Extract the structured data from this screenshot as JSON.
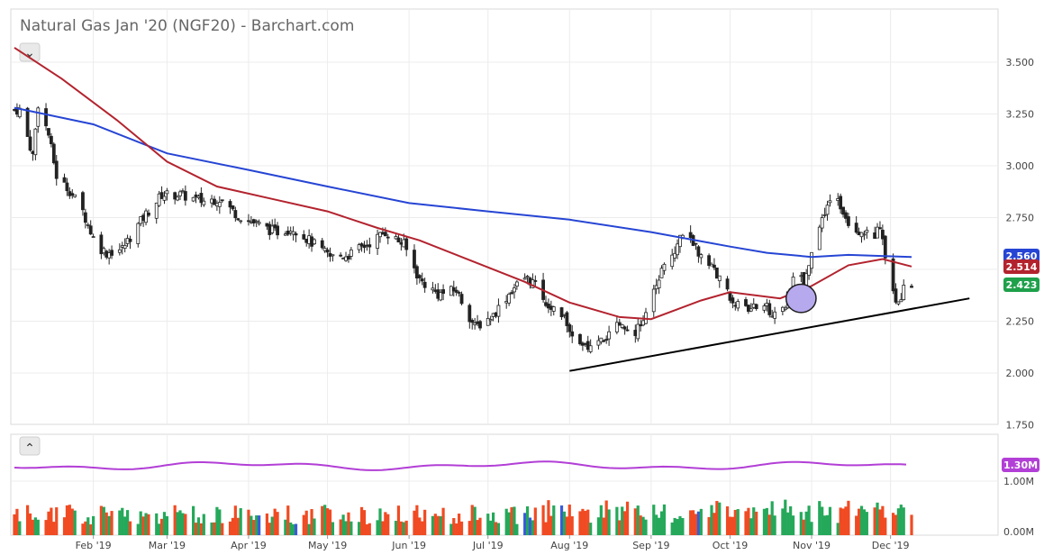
{
  "chart_data": [
    {
      "type": "candlestick",
      "title": "Natural Gas Jan '20 (NGF20) - Barchart.com",
      "ylim": [
        1.75,
        3.6
      ],
      "y_ticks": [
        "3.500",
        "3.250",
        "3.000",
        "2.750",
        "2.500",
        "2.250",
        "2.000",
        "1.750"
      ],
      "x_ticks": [
        "Feb '19",
        "Mar '19",
        "Apr '19",
        "May '19",
        "Jun '19",
        "Jul '19",
        "Aug '19",
        "Sep '19",
        "Oct '19",
        "Nov '19",
        "Dec '19"
      ],
      "price_path": [
        [
          "2019-01-04",
          3.27
        ],
        [
          "2019-01-09",
          3.05
        ],
        [
          "2019-01-11",
          3.3
        ],
        [
          "2019-01-15",
          3.15
        ],
        [
          "2019-01-18",
          2.95
        ],
        [
          "2019-01-23",
          2.88
        ],
        [
          "2019-01-28",
          2.78
        ],
        [
          "2019-02-02",
          2.62
        ],
        [
          "2019-02-06",
          2.58
        ],
        [
          "2019-02-12",
          2.6
        ],
        [
          "2019-02-20",
          2.75
        ],
        [
          "2019-02-27",
          2.86
        ],
        [
          "2019-03-06",
          2.86
        ],
        [
          "2019-03-14",
          2.83
        ],
        [
          "2019-03-21",
          2.84
        ],
        [
          "2019-03-28",
          2.76
        ],
        [
          "2019-04-04",
          2.72
        ],
        [
          "2019-04-11",
          2.68
        ],
        [
          "2019-04-18",
          2.7
        ],
        [
          "2019-04-26",
          2.62
        ],
        [
          "2019-05-02",
          2.56
        ],
        [
          "2019-05-09",
          2.57
        ],
        [
          "2019-05-16",
          2.62
        ],
        [
          "2019-05-23",
          2.68
        ],
        [
          "2019-05-30",
          2.62
        ],
        [
          "2019-06-05",
          2.45
        ],
        [
          "2019-06-12",
          2.38
        ],
        [
          "2019-06-19",
          2.4
        ],
        [
          "2019-06-26",
          2.22
        ],
        [
          "2019-07-03",
          2.28
        ],
        [
          "2019-07-10",
          2.4
        ],
        [
          "2019-07-15",
          2.46
        ],
        [
          "2019-07-18",
          2.44
        ],
        [
          "2019-07-24",
          2.33
        ],
        [
          "2019-07-31",
          2.25
        ],
        [
          "2019-08-05",
          2.12
        ],
        [
          "2019-08-12",
          2.14
        ],
        [
          "2019-08-19",
          2.22
        ],
        [
          "2019-08-26",
          2.2
        ],
        [
          "2019-08-31",
          2.3
        ],
        [
          "2019-09-05",
          2.5
        ],
        [
          "2019-09-10",
          2.6
        ],
        [
          "2019-09-13",
          2.68
        ],
        [
          "2019-09-18",
          2.6
        ],
        [
          "2019-09-25",
          2.5
        ],
        [
          "2019-10-01",
          2.36
        ],
        [
          "2019-10-07",
          2.3
        ],
        [
          "2019-10-14",
          2.33
        ],
        [
          "2019-10-18",
          2.27
        ],
        [
          "2019-10-22",
          2.33
        ],
        [
          "2019-10-26",
          2.48
        ],
        [
          "2019-10-29",
          2.44
        ],
        [
          "2019-11-02",
          2.6
        ],
        [
          "2019-11-06",
          2.78
        ],
        [
          "2019-11-10",
          2.86
        ],
        [
          "2019-11-15",
          2.73
        ],
        [
          "2019-11-20",
          2.68
        ],
        [
          "2019-11-25",
          2.67
        ],
        [
          "2019-11-27",
          2.7
        ],
        [
          "2019-11-29",
          2.55
        ],
        [
          "2019-12-03",
          2.32
        ],
        [
          "2019-12-06",
          2.4
        ],
        [
          "2019-12-09",
          2.423
        ]
      ],
      "series": [
        {
          "name": "",
          "type": "moving-average",
          "color": "#2645d4",
          "points": [
            [
              "2019-01-02",
              3.28
            ],
            [
              "2019-02-01",
              3.2
            ],
            [
              "2019-03-01",
              3.06
            ],
            [
              "2019-04-01",
              2.98
            ],
            [
              "2019-05-01",
              2.9
            ],
            [
              "2019-06-01",
              2.82
            ],
            [
              "2019-07-01",
              2.78
            ],
            [
              "2019-08-01",
              2.74
            ],
            [
              "2019-09-01",
              2.68
            ],
            [
              "2019-10-01",
              2.61
            ],
            [
              "2019-10-15",
              2.58
            ],
            [
              "2019-11-01",
              2.56
            ],
            [
              "2019-11-15",
              2.57
            ],
            [
              "2019-12-09",
              2.56
            ]
          ]
        },
        {
          "name": "",
          "type": "moving-average",
          "color": "#b3232e",
          "points": [
            [
              "2019-01-02",
              3.57
            ],
            [
              "2019-01-20",
              3.42
            ],
            [
              "2019-02-10",
              3.22
            ],
            [
              "2019-03-01",
              3.02
            ],
            [
              "2019-03-20",
              2.9
            ],
            [
              "2019-04-10",
              2.84
            ],
            [
              "2019-05-01",
              2.78
            ],
            [
              "2019-05-20",
              2.7
            ],
            [
              "2019-06-05",
              2.64
            ],
            [
              "2019-06-25",
              2.54
            ],
            [
              "2019-07-15",
              2.44
            ],
            [
              "2019-08-01",
              2.34
            ],
            [
              "2019-08-20",
              2.27
            ],
            [
              "2019-09-01",
              2.26
            ],
            [
              "2019-09-20",
              2.35
            ],
            [
              "2019-10-01",
              2.39
            ],
            [
              "2019-10-20",
              2.36
            ],
            [
              "2019-11-01",
              2.42
            ],
            [
              "2019-11-15",
              2.52
            ],
            [
              "2019-11-28",
              2.55
            ],
            [
              "2019-12-09",
              2.514
            ]
          ]
        }
      ],
      "annotations": [
        {
          "type": "trendline",
          "color": "#000000",
          "from": [
            "2019-08-01",
            2.01
          ],
          "to": [
            "2019-12-31",
            2.36
          ]
        },
        {
          "type": "ellipse",
          "fill": "#b7a9ee",
          "center": [
            "2019-10-28",
            2.36
          ],
          "rx_days": 5.7,
          "ry": 0.068
        }
      ],
      "price_labels": [
        {
          "value": "2.560",
          "bg": "#2645d4"
        },
        {
          "value": "2.514",
          "bg": "#b3232e"
        },
        {
          "value": "2.423",
          "bg": "#1fa04b"
        }
      ],
      "grid": true
    },
    {
      "type": "bar",
      "title": "",
      "y_ticks": [
        "1.00M",
        "0.00M"
      ],
      "avg_line_color": "#b23fd6",
      "avg_level": "1.30M",
      "colors": {
        "up": "#25a85a",
        "down": "#f04b23",
        "highlight": "#3a5bd6"
      }
    }
  ],
  "ui": {
    "collapse_top_glyph": "⌄",
    "collapse_bottom_glyph": "⌃"
  }
}
